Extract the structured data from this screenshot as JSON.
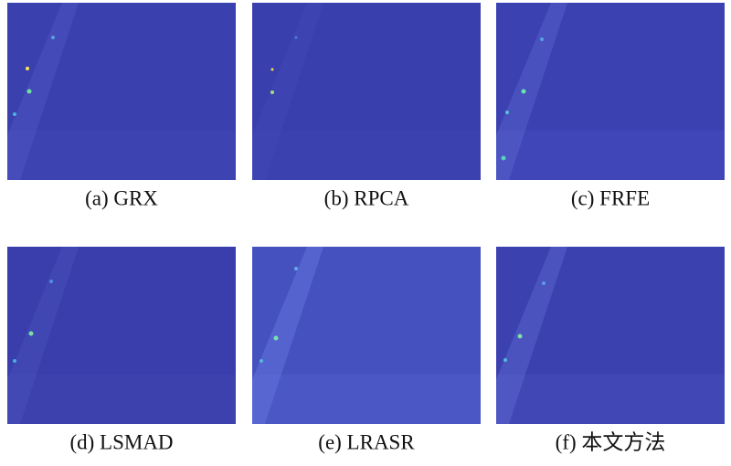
{
  "panels": [
    {
      "caption": "(a) GRX"
    },
    {
      "caption": "(b) RPCA"
    },
    {
      "caption": "(c) FRFE"
    },
    {
      "caption": "(d) LSMAD"
    },
    {
      "caption": "(e) LRASR"
    },
    {
      "caption": "(f) 本文方法"
    }
  ]
}
